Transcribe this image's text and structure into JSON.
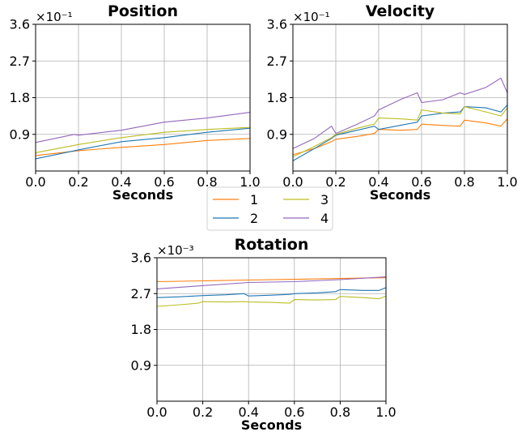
{
  "chart_data": [
    {
      "type": "line",
      "title": "Position",
      "xlabel": "Seconds",
      "ylabel": "",
      "y_multiplier": "×10⁻¹",
      "xlim": [
        0.0,
        1.0
      ],
      "ylim": [
        0.0,
        3.6
      ],
      "xticks": [
        "0.0",
        "0.2",
        "0.4",
        "0.6",
        "0.8",
        "1.0"
      ],
      "yticks": [
        "0.9",
        "1.8",
        "2.7",
        "3.6"
      ],
      "grid": true,
      "series": [
        {
          "name": "1",
          "color": "#ff7f0e",
          "x": [
            0.0,
            0.2,
            0.4,
            0.6,
            0.8,
            1.0
          ],
          "y": [
            0.38,
            0.5,
            0.58,
            0.65,
            0.75,
            0.8
          ]
        },
        {
          "name": "2",
          "color": "#1f77b4",
          "x": [
            0.0,
            0.2,
            0.4,
            0.6,
            0.8,
            1.0
          ],
          "y": [
            0.3,
            0.52,
            0.72,
            0.82,
            0.95,
            1.05
          ]
        },
        {
          "name": "3",
          "color": "#bcbd22",
          "x": [
            0.0,
            0.2,
            0.4,
            0.6,
            0.8,
            1.0
          ],
          "y": [
            0.45,
            0.65,
            0.82,
            0.95,
            1.02,
            1.07
          ]
        },
        {
          "name": "4",
          "color": "#9467bd",
          "x": [
            0.0,
            0.18,
            0.2,
            0.4,
            0.6,
            0.8,
            1.0
          ],
          "y": [
            0.7,
            0.9,
            0.88,
            1.0,
            1.2,
            1.3,
            1.44
          ]
        }
      ]
    },
    {
      "type": "line",
      "title": "Velocity",
      "xlabel": "Seconds",
      "ylabel": "",
      "y_multiplier": "×10⁻¹",
      "xlim": [
        0.0,
        1.0
      ],
      "ylim": [
        0.0,
        3.6
      ],
      "xticks": [
        "0.0",
        "0.2",
        "0.4",
        "0.6",
        "0.8",
        "1.0"
      ],
      "yticks": [
        "0.9",
        "1.8",
        "2.7",
        "3.6"
      ],
      "grid": true,
      "series": [
        {
          "name": "1",
          "color": "#ff7f0e",
          "x": [
            0.0,
            0.1,
            0.18,
            0.2,
            0.3,
            0.38,
            0.4,
            0.5,
            0.58,
            0.6,
            0.7,
            0.78,
            0.8,
            0.9,
            0.97,
            1.0
          ],
          "y": [
            0.4,
            0.55,
            0.72,
            0.78,
            0.85,
            0.92,
            1.02,
            1.0,
            1.02,
            1.15,
            1.12,
            1.1,
            1.25,
            1.18,
            1.1,
            1.28
          ]
        },
        {
          "name": "2",
          "color": "#1f77b4",
          "x": [
            0.0,
            0.1,
            0.18,
            0.2,
            0.3,
            0.38,
            0.4,
            0.5,
            0.58,
            0.6,
            0.7,
            0.78,
            0.8,
            0.9,
            0.97,
            1.0
          ],
          "y": [
            0.25,
            0.55,
            0.8,
            0.88,
            1.0,
            1.1,
            1.02,
            1.12,
            1.2,
            1.35,
            1.42,
            1.45,
            1.58,
            1.55,
            1.45,
            1.62
          ]
        },
        {
          "name": "3",
          "color": "#bcbd22",
          "x": [
            0.0,
            0.1,
            0.18,
            0.2,
            0.3,
            0.38,
            0.4,
            0.5,
            0.58,
            0.6,
            0.7,
            0.78,
            0.8,
            0.9,
            0.97,
            1.0
          ],
          "y": [
            0.35,
            0.6,
            0.82,
            0.9,
            1.05,
            1.15,
            1.3,
            1.28,
            1.25,
            1.5,
            1.42,
            1.4,
            1.58,
            1.45,
            1.35,
            1.55
          ]
        },
        {
          "name": "4",
          "color": "#9467bd",
          "x": [
            0.0,
            0.1,
            0.18,
            0.2,
            0.3,
            0.38,
            0.4,
            0.5,
            0.58,
            0.6,
            0.7,
            0.78,
            0.8,
            0.9,
            0.97,
            1.0
          ],
          "y": [
            0.55,
            0.8,
            1.1,
            0.92,
            1.15,
            1.35,
            1.5,
            1.75,
            1.92,
            1.68,
            1.75,
            1.92,
            1.88,
            2.05,
            2.28,
            1.92
          ]
        }
      ]
    },
    {
      "type": "line",
      "title": "Rotation",
      "xlabel": "Seconds",
      "ylabel": "",
      "y_multiplier": "×10⁻³",
      "xlim": [
        0.0,
        1.0
      ],
      "ylim": [
        0.0,
        3.6
      ],
      "xticks": [
        "0.0",
        "0.2",
        "0.4",
        "0.6",
        "0.8",
        "1.0"
      ],
      "yticks": [
        "0.9",
        "1.8",
        "2.7",
        "3.6"
      ],
      "grid": true,
      "series": [
        {
          "name": "1",
          "color": "#ff7f0e",
          "x": [
            0.0,
            0.2,
            0.4,
            0.6,
            0.8,
            1.0
          ],
          "y": [
            3.0,
            3.02,
            3.04,
            3.06,
            3.08,
            3.1
          ]
        },
        {
          "name": "2",
          "color": "#1f77b4",
          "x": [
            0.0,
            0.1,
            0.2,
            0.3,
            0.38,
            0.4,
            0.5,
            0.58,
            0.6,
            0.7,
            0.78,
            0.8,
            0.9,
            0.97,
            1.0
          ],
          "y": [
            2.6,
            2.62,
            2.65,
            2.67,
            2.7,
            2.64,
            2.66,
            2.68,
            2.7,
            2.72,
            2.75,
            2.8,
            2.78,
            2.78,
            2.85
          ]
        },
        {
          "name": "3",
          "color": "#bcbd22",
          "x": [
            0.0,
            0.1,
            0.18,
            0.2,
            0.3,
            0.38,
            0.4,
            0.5,
            0.58,
            0.6,
            0.7,
            0.78,
            0.8,
            0.9,
            0.97,
            1.0
          ],
          "y": [
            2.38,
            2.42,
            2.46,
            2.5,
            2.49,
            2.5,
            2.49,
            2.48,
            2.46,
            2.55,
            2.54,
            2.55,
            2.63,
            2.6,
            2.57,
            2.64
          ]
        },
        {
          "name": "4",
          "color": "#9467bd",
          "x": [
            0.0,
            0.2,
            0.4,
            0.6,
            0.8,
            1.0
          ],
          "y": [
            2.82,
            2.9,
            2.98,
            3.0,
            3.05,
            3.12
          ]
        }
      ]
    }
  ],
  "legend": {
    "placement": "center",
    "entries": [
      {
        "label": "1",
        "color": "#ff7f0e"
      },
      {
        "label": "3",
        "color": "#bcbd22"
      },
      {
        "label": "2",
        "color": "#1f77b4"
      },
      {
        "label": "4",
        "color": "#9467bd"
      }
    ]
  }
}
